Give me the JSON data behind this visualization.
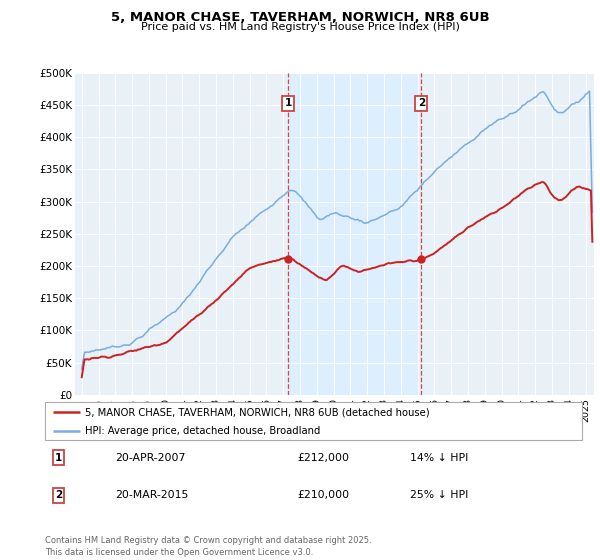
{
  "title_line1": "5, MANOR CHASE, TAVERHAM, NORWICH, NR8 6UB",
  "title_line2": "Price paid vs. HM Land Registry's House Price Index (HPI)",
  "ylim": [
    0,
    500000
  ],
  "yticks": [
    0,
    50000,
    100000,
    150000,
    200000,
    250000,
    300000,
    350000,
    400000,
    450000,
    500000
  ],
  "ytick_labels": [
    "£0",
    "£50K",
    "£100K",
    "£150K",
    "£200K",
    "£250K",
    "£300K",
    "£350K",
    "£400K",
    "£450K",
    "£500K"
  ],
  "hpi_color": "#7aade0",
  "price_color": "#cc2222",
  "sale1_date": "20-APR-2007",
  "sale1_price": 212000,
  "sale1_pct": "14% ↓ HPI",
  "sale2_date": "20-MAR-2015",
  "sale2_price": 210000,
  "sale2_pct": "25% ↓ HPI",
  "sale1_x": 2007.3,
  "sale2_x": 2015.22,
  "shade_color": "#ddeeff",
  "plot_bg": "#e8f0f8",
  "legend_label1": "5, MANOR CHASE, TAVERHAM, NORWICH, NR8 6UB (detached house)",
  "legend_label2": "HPI: Average price, detached house, Broadland",
  "footer": "Contains HM Land Registry data © Crown copyright and database right 2025.\nThis data is licensed under the Open Government Licence v3.0.",
  "xlim_start": 1994.6,
  "xlim_end": 2025.5,
  "xticks": [
    1995,
    1996,
    1997,
    1998,
    1999,
    2000,
    2001,
    2002,
    2003,
    2004,
    2005,
    2006,
    2007,
    2008,
    2009,
    2010,
    2011,
    2012,
    2013,
    2014,
    2015,
    2016,
    2017,
    2018,
    2019,
    2020,
    2021,
    2022,
    2023,
    2024,
    2025
  ]
}
